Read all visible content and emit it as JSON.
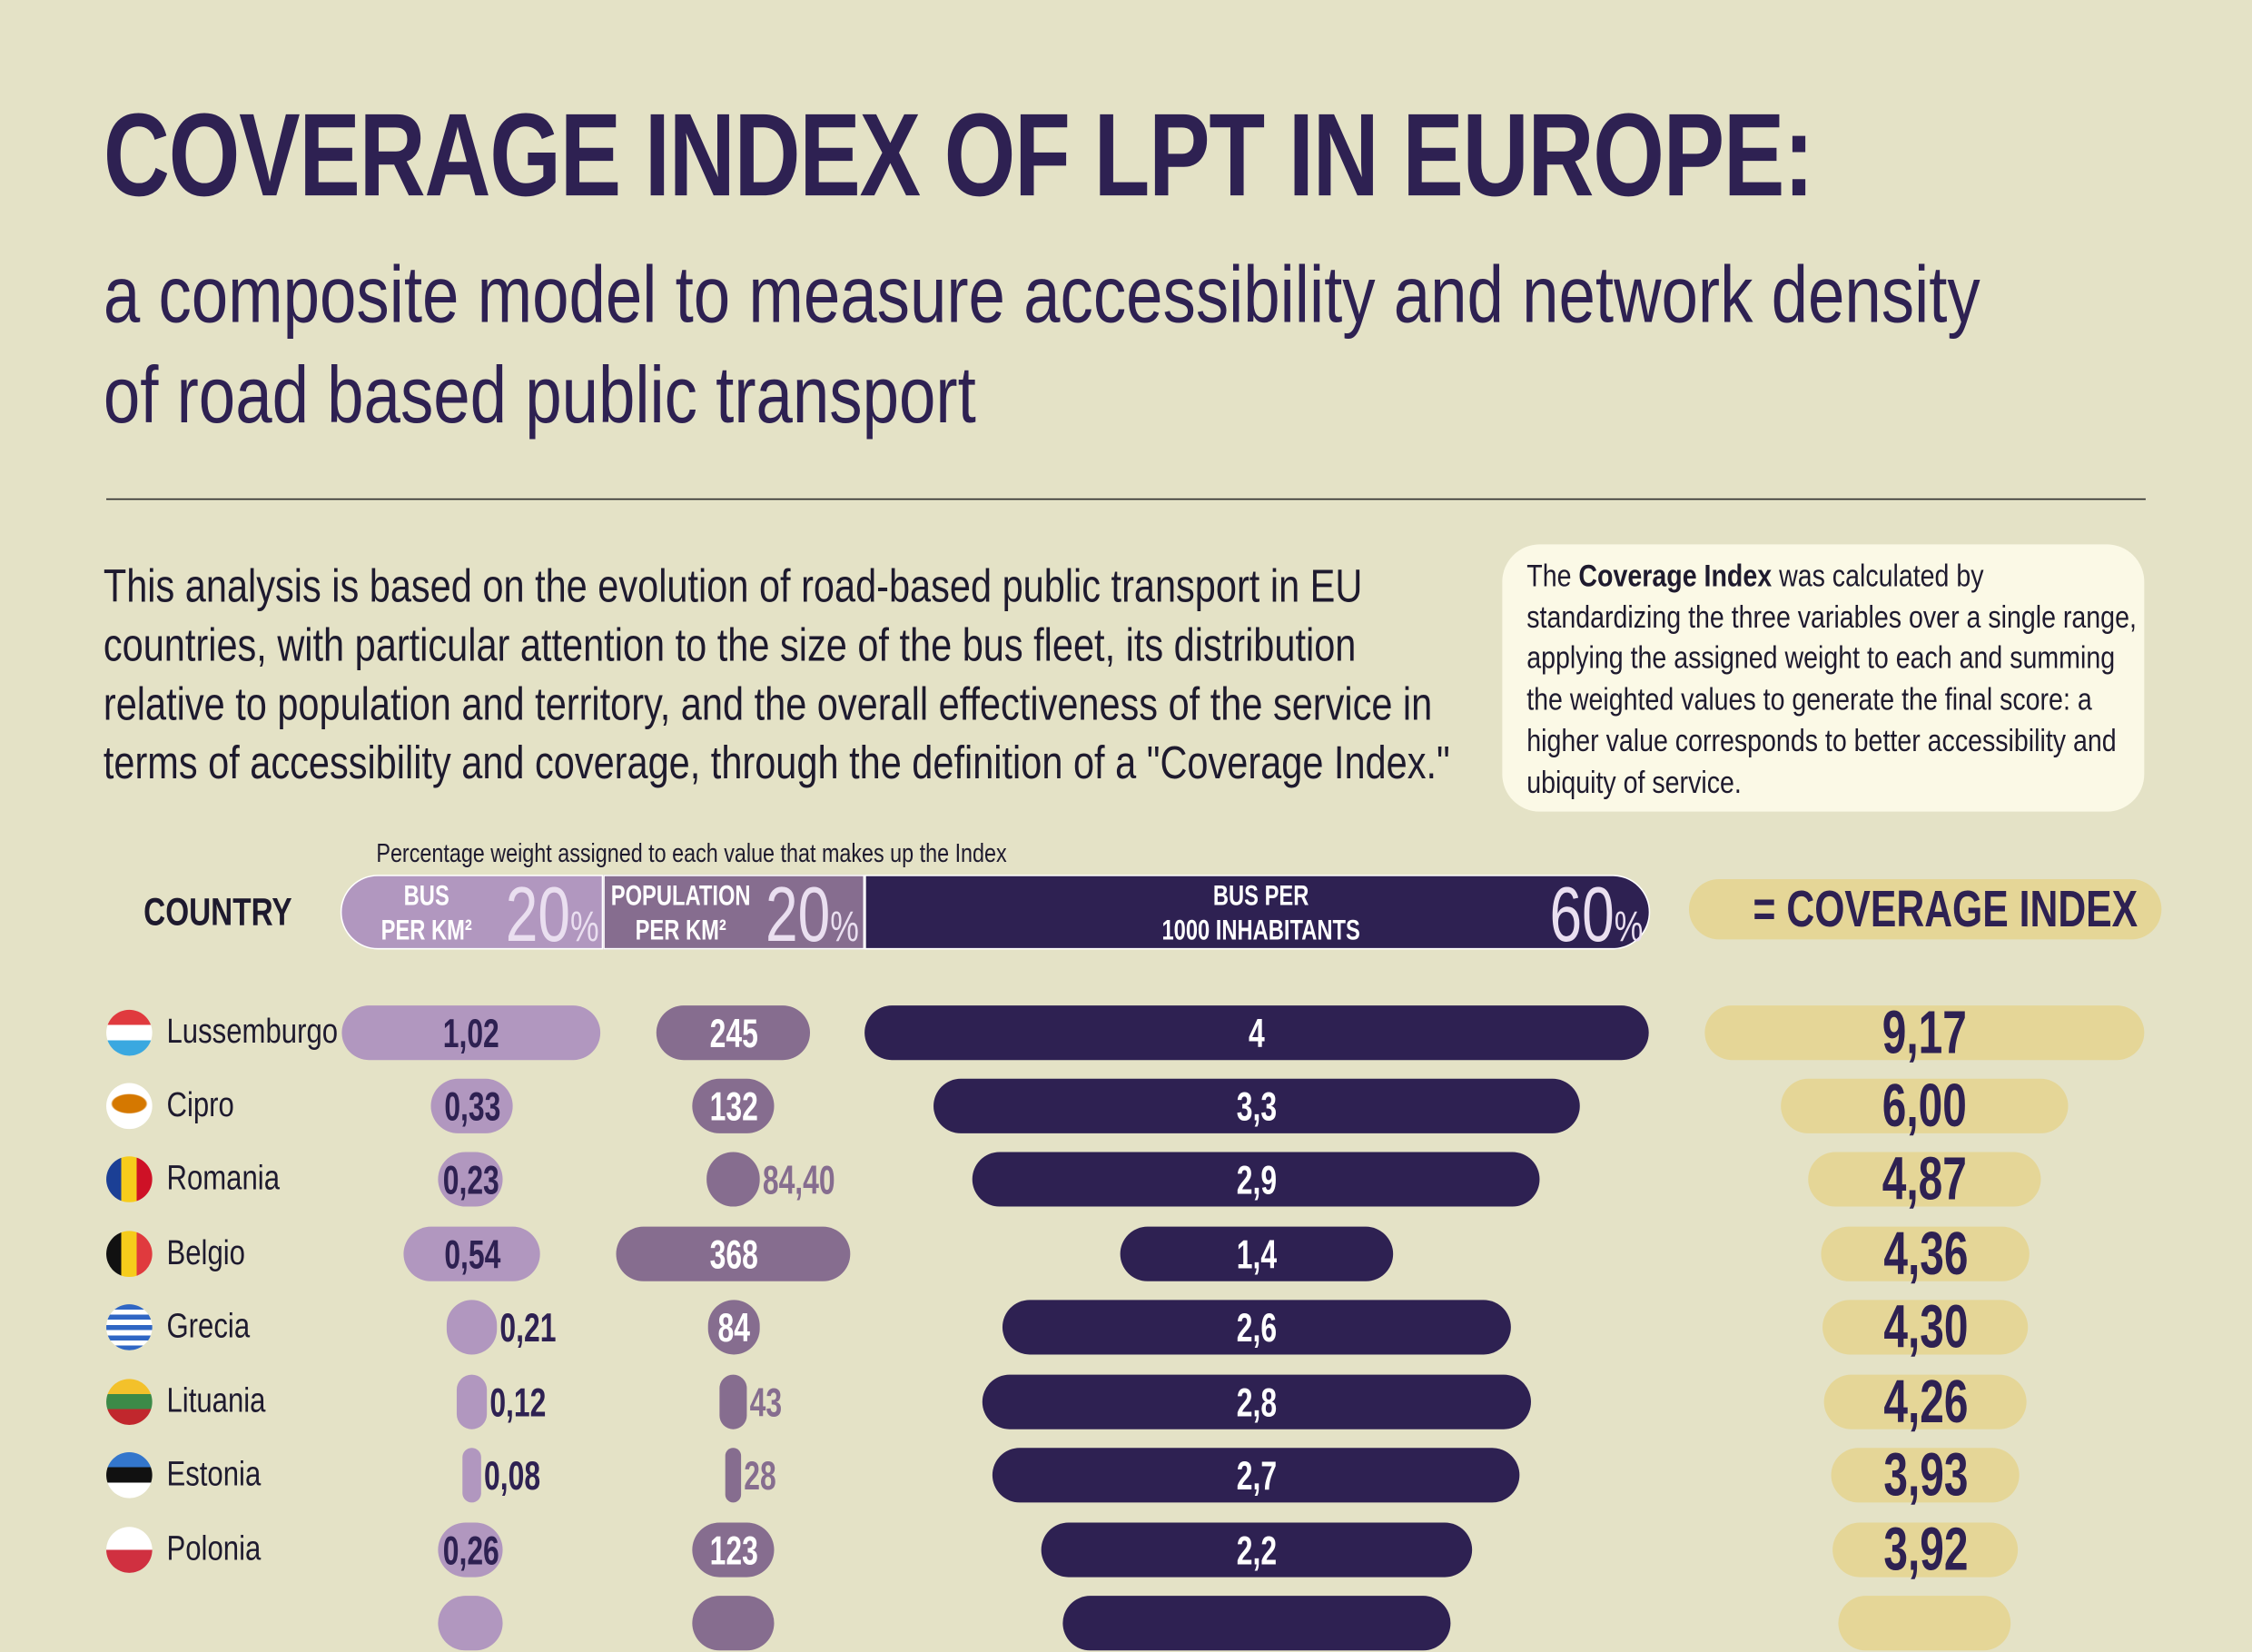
{
  "header": {
    "title": "COVERAGE INDEX OF LPT IN EUROPE:",
    "subtitle_line1": "a composite model to measure accessibility and network density",
    "subtitle_line2": "of road based public transport"
  },
  "intro": "This analysis is based on the evolution of road-based public transport in EU countries, with particular attention to the size of the bus fleet, its distribution relative to population and territory, and the overall effectiveness of the service in terms of accessibility and coverage, through the definition of a \"Coverage Index.\"",
  "note": {
    "prefix": "The ",
    "bold": "Coverage Index",
    "rest": " was calculated by standardizing the three variables over a single range, applying the assigned weight to each and summing the weighted values to generate the final score: a higher value corresponds to better accessibility and ubiquity of service."
  },
  "chart_data": {
    "type": "table",
    "weight_caption": "Percentage weight assigned to each value that makes up the Index",
    "country_header": "COUNTRY",
    "columns": [
      {
        "label_line1": "BUS",
        "label_line2": "PER KM²",
        "weight": "20",
        "weight_unit": "%",
        "color": "#b197bf"
      },
      {
        "label_line1": "POPULATION",
        "label_line2": "PER KM²",
        "weight": "20",
        "weight_unit": "%",
        "color": "#866d8f"
      },
      {
        "label_line1": "BUS PER",
        "label_line2": "1000 INHABITANTS",
        "weight": "60",
        "weight_unit": "%",
        "color": "#2e2152"
      }
    ],
    "index_header": "= COVERAGE INDEX",
    "index_color": "#e5d697",
    "rows": [
      {
        "country": "Lussemburgo",
        "flag": "luxembourg-flag",
        "bus_km2": "1,02",
        "pop_km2": "245",
        "bus_1000": "4",
        "index": "9,17"
      },
      {
        "country": "Cipro",
        "flag": "cyprus-flag",
        "bus_km2": "0,33",
        "pop_km2": "132",
        "bus_1000": "3,3",
        "index": "6,00"
      },
      {
        "country": "Romania",
        "flag": "romania-flag",
        "bus_km2": "0,23",
        "pop_km2": "84,40",
        "bus_1000": "2,9",
        "index": "4,87"
      },
      {
        "country": "Belgio",
        "flag": "belgium-flag",
        "bus_km2": "0,54",
        "pop_km2": "368",
        "bus_1000": "1,4",
        "index": "4,36"
      },
      {
        "country": "Grecia",
        "flag": "greece-flag",
        "bus_km2": "0,21",
        "pop_km2": "84",
        "bus_1000": "2,6",
        "index": "4,30"
      },
      {
        "country": "Lituania",
        "flag": "lithuania-flag",
        "bus_km2": "0,12",
        "pop_km2": "43",
        "bus_1000": "2,8",
        "index": "4,26"
      },
      {
        "country": "Estonia",
        "flag": "estonia-flag",
        "bus_km2": "0,08",
        "pop_km2": "28",
        "bus_1000": "2,7",
        "index": "3,93"
      },
      {
        "country": "Polonia",
        "flag": "poland-flag",
        "bus_km2": "0,26",
        "pop_km2": "123",
        "bus_1000": "2,2",
        "index": "3,92"
      }
    ]
  }
}
